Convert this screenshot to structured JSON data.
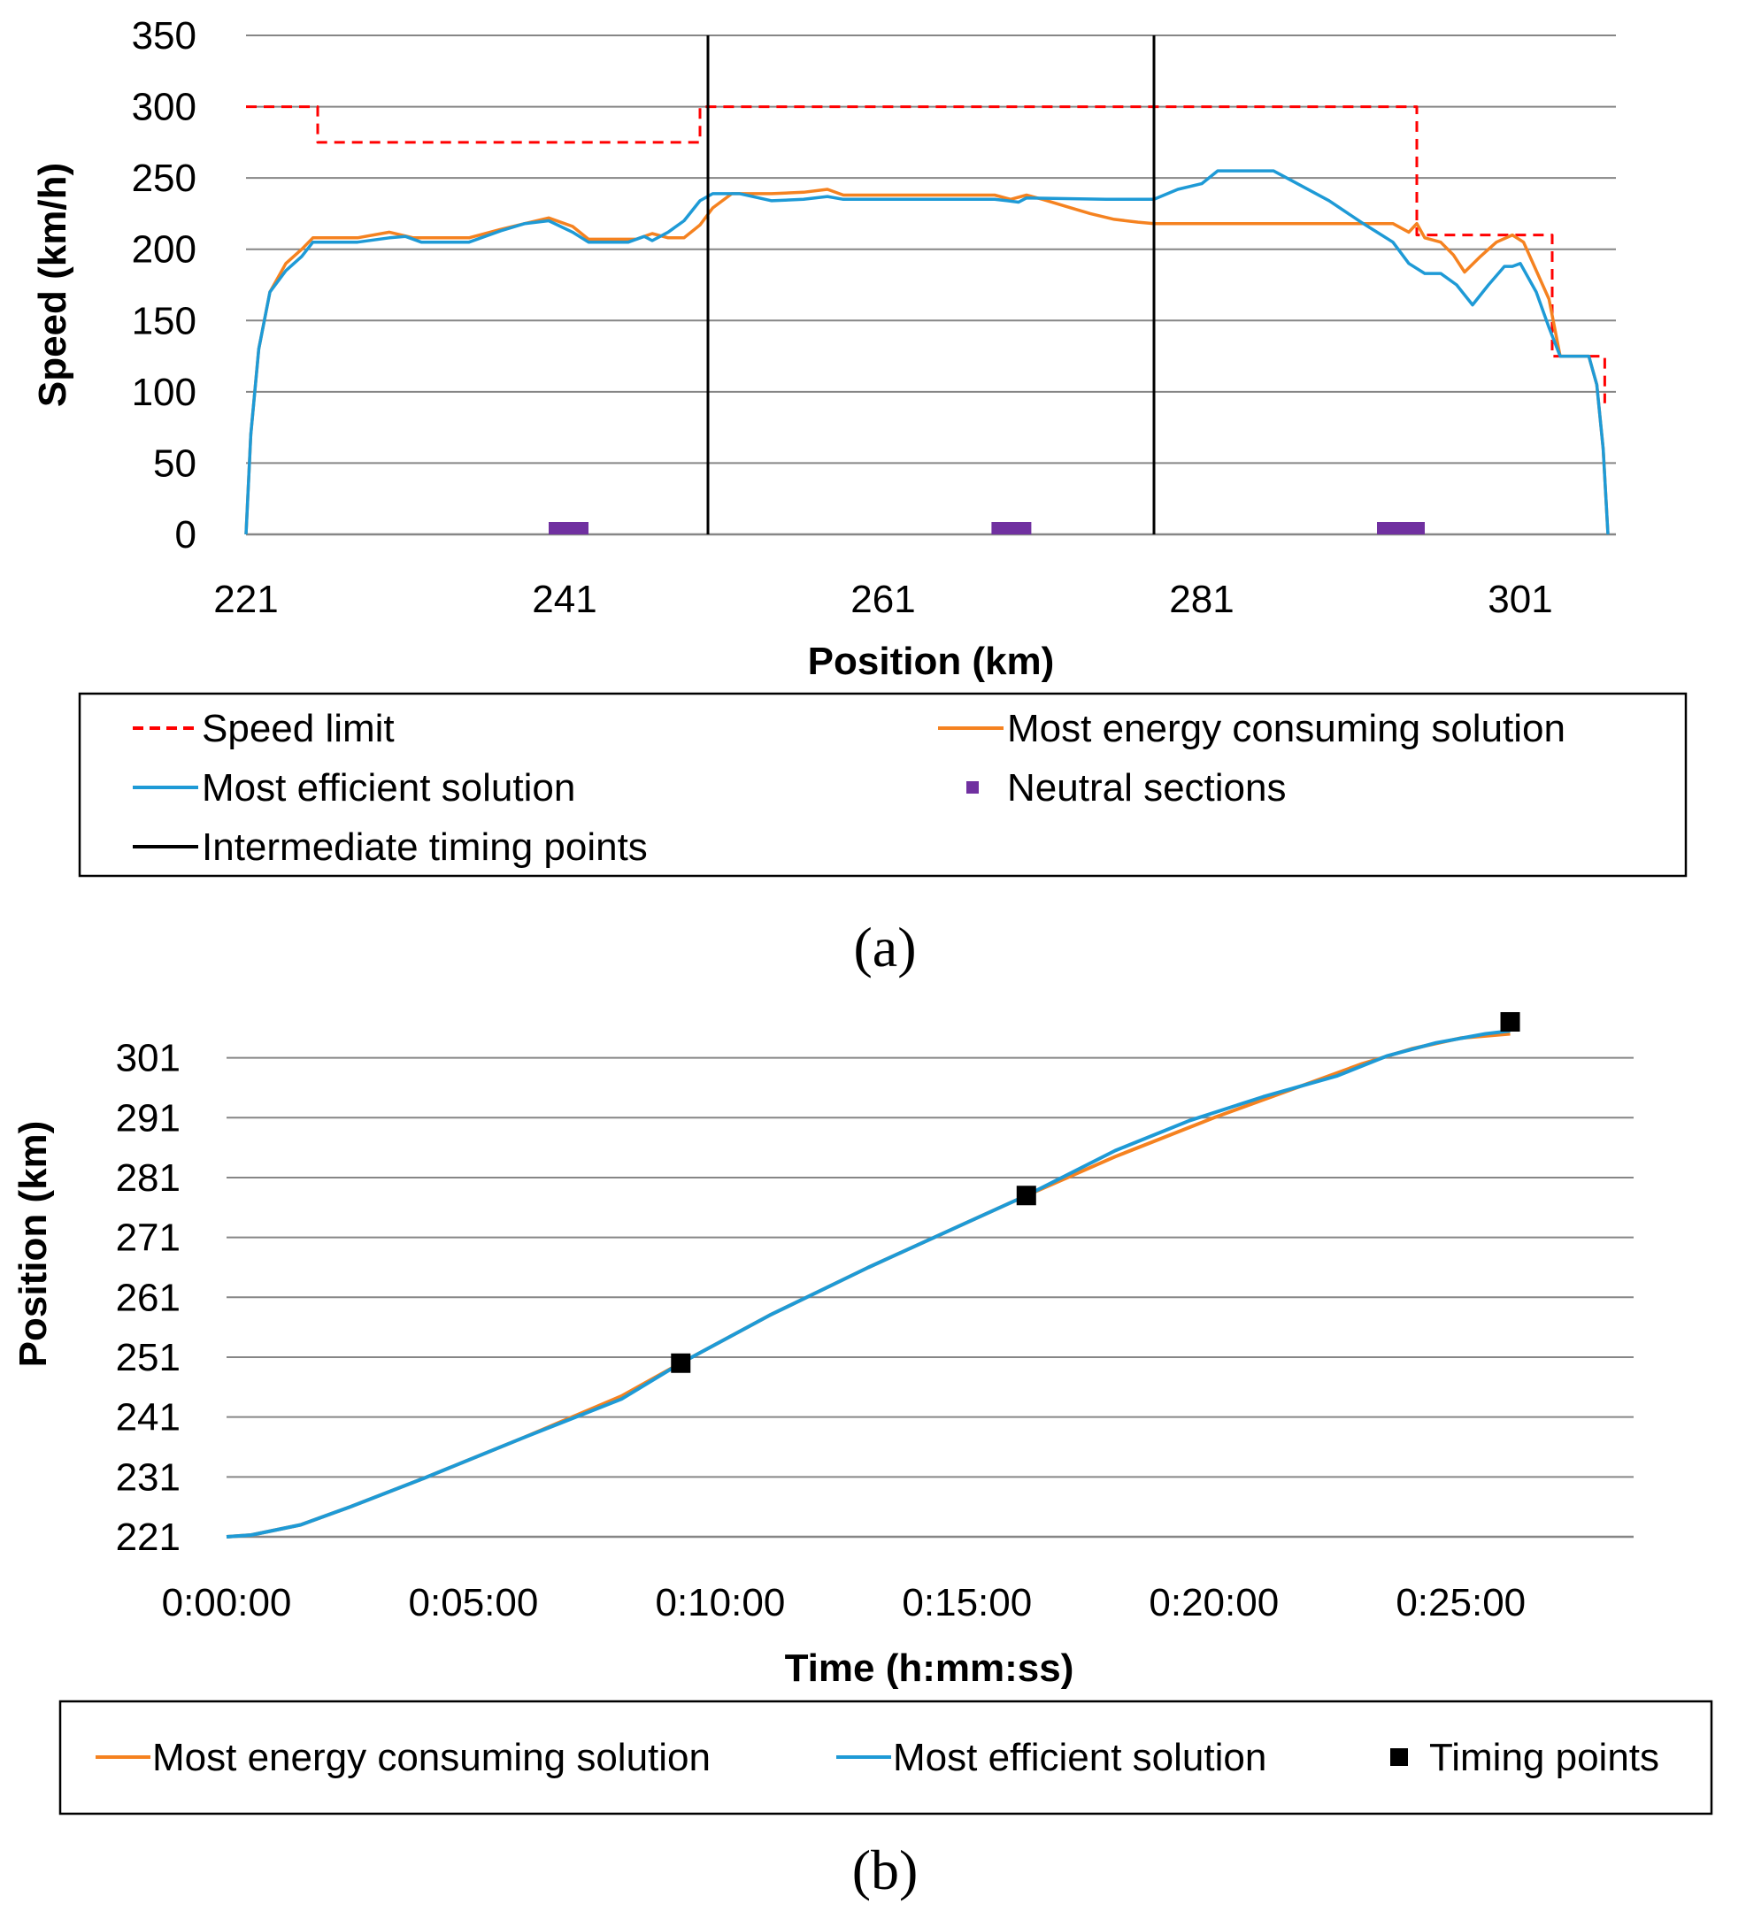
{
  "colors": {
    "speed_limit": "#ff0000",
    "energy": "#f58220",
    "efficient": "#1e9ad6",
    "neutral": "#7030a0",
    "timing": "#000000",
    "grid": "#868686"
  },
  "chart_data": [
    {
      "panel": "(a)",
      "type": "line",
      "xlabel": "Position (km)",
      "ylabel": "Speed (km/h)",
      "xlim": [
        221,
        307
      ],
      "ylim": [
        0,
        350
      ],
      "x_ticks": [
        221,
        241,
        261,
        281,
        301
      ],
      "y_ticks": [
        0,
        50,
        100,
        150,
        200,
        250,
        300,
        350
      ],
      "grid": true,
      "legend": {
        "position": "bottom",
        "items": [
          {
            "key": "speed_limit",
            "label": "Speed limit",
            "style": "dashed",
            "color": "#ff0000"
          },
          {
            "key": "energy",
            "label": "Most energy consuming solution",
            "style": "line",
            "color": "#f58220"
          },
          {
            "key": "efficient",
            "label": "Most efficient solution",
            "style": "line",
            "color": "#1e9ad6"
          },
          {
            "key": "neutral",
            "label": "Neutral sections",
            "style": "square",
            "color": "#7030a0"
          },
          {
            "key": "timing",
            "label": "Intermediate timing points",
            "style": "line",
            "color": "#000000"
          }
        ]
      },
      "series": [
        {
          "name": "Speed limit",
          "key": "speed_limit",
          "x": [
            221,
            225.5,
            225.5,
            249.5,
            249.5,
            294.5,
            294.5,
            303,
            303,
            306.3,
            306.3
          ],
          "y": [
            300,
            300,
            275,
            275,
            300,
            300,
            210,
            210,
            125,
            125,
            92
          ]
        },
        {
          "name": "Most energy consuming solution",
          "key": "energy",
          "x": [
            221,
            221.3,
            221.8,
            222.5,
            223.5,
            224.5,
            225.2,
            226,
            228,
            230,
            231.5,
            232.5,
            235,
            237,
            238.5,
            240,
            241.5,
            242.5,
            243.5,
            245.5,
            246.5,
            247.5,
            248.5,
            249.5,
            250.3,
            251.5,
            254,
            256,
            257.5,
            258.5,
            265,
            268,
            269,
            270,
            271,
            272.5,
            274,
            275.5,
            277,
            278,
            283,
            288,
            293,
            294,
            294.5,
            295,
            296,
            296.8,
            297.5,
            298.5,
            299.5,
            300.5,
            301.2,
            302,
            302.8,
            303.5,
            304.5,
            305.3,
            305.8,
            306.2,
            306.5
          ],
          "y": [
            0,
            70,
            130,
            170,
            190,
            200,
            208,
            208,
            208,
            212,
            208,
            208,
            208,
            214,
            218,
            222,
            216,
            207,
            207,
            207,
            211,
            208,
            208,
            217,
            229,
            239,
            239,
            240,
            242,
            238,
            238,
            238,
            235,
            238,
            235,
            230,
            225,
            221,
            219,
            218,
            218,
            218,
            218,
            212,
            218,
            208,
            205,
            196,
            184,
            195,
            205,
            210,
            205,
            185,
            165,
            125,
            125,
            125,
            105,
            60,
            0
          ]
        },
        {
          "name": "Most efficient solution",
          "key": "efficient",
          "x": [
            221,
            221.3,
            221.8,
            222.5,
            223.5,
            224.5,
            225.2,
            226,
            228,
            230,
            231,
            232,
            235,
            237,
            238.5,
            240,
            241.5,
            242.5,
            243.5,
            245,
            246,
            246.5,
            247.5,
            248.5,
            249.5,
            250.3,
            252,
            254,
            256,
            257.5,
            258.5,
            263,
            268,
            268.8,
            269.5,
            270,
            275,
            278,
            279.5,
            281,
            282,
            284,
            285.5,
            287,
            289,
            291,
            292,
            293,
            294,
            295,
            296,
            297,
            298,
            299,
            300,
            300.5,
            301,
            302,
            302.8,
            303.5,
            304.5,
            305.3,
            305.8,
            306.2,
            306.5
          ],
          "y": [
            0,
            70,
            130,
            170,
            185,
            195,
            205,
            205,
            205,
            208,
            209,
            205,
            205,
            213,
            218,
            220,
            212,
            205,
            205,
            205,
            209,
            206,
            212,
            220,
            234,
            239,
            239,
            234,
            235,
            237,
            235,
            235,
            235,
            234,
            233,
            236,
            235,
            235,
            242,
            246,
            255,
            255,
            255,
            246,
            234,
            219,
            212,
            205,
            190,
            183,
            183,
            175,
            161,
            175,
            188,
            188,
            190,
            170,
            145,
            125,
            125,
            125,
            105,
            60,
            0
          ]
        }
      ],
      "neutral_sections": [
        {
          "from": 240,
          "to": 242.5
        },
        {
          "from": 267.8,
          "to": 270.3
        },
        {
          "from": 292,
          "to": 295
        }
      ],
      "timing_points": [
        250,
        278
      ]
    },
    {
      "panel": "(b)",
      "type": "line",
      "xlabel": "Time (h:mm:ss)",
      "ylabel": "Position (km)",
      "xlim_minutes": [
        0,
        28.5
      ],
      "ylim": [
        221,
        307
      ],
      "x_ticks_minutes": [
        0,
        5,
        10,
        15,
        20,
        25
      ],
      "x_tick_labels": [
        "0:00:00",
        "0:05:00",
        "0:10:00",
        "0:15:00",
        "0:20:00",
        "0:25:00"
      ],
      "y_ticks": [
        221,
        231,
        241,
        251,
        261,
        271,
        281,
        291,
        301
      ],
      "grid": true,
      "legend": {
        "position": "bottom",
        "items": [
          {
            "key": "energy",
            "label": "Most energy consuming solution",
            "style": "line",
            "color": "#f58220"
          },
          {
            "key": "efficient",
            "label": "Most efficient solution",
            "style": "line",
            "color": "#1e9ad6"
          },
          {
            "key": "timing",
            "label": "Timing points",
            "style": "square",
            "color": "#000000"
          }
        ]
      },
      "series": [
        {
          "name": "Most energy consuming solution",
          "key": "energy",
          "x_minutes": [
            0,
            0.5,
            1.5,
            2.5,
            4,
            6,
            8,
            9.2,
            11,
            13,
            15,
            16.2,
            18,
            20,
            22,
            23,
            24,
            25,
            26
          ],
          "y": [
            221,
            221.3,
            223,
            226,
            230.8,
            237.5,
            244.5,
            250,
            258,
            266,
            273.5,
            278,
            284.5,
            291,
            297,
            300,
            302.5,
            304.3,
            305
          ]
        },
        {
          "name": "Most efficient solution",
          "key": "efficient",
          "x_minutes": [
            0,
            0.5,
            1.5,
            2.5,
            4,
            6,
            8,
            9.2,
            11,
            13,
            15,
            16.2,
            18,
            19.5,
            21,
            22.5,
            23.5,
            24.5,
            25.5,
            26
          ],
          "y": [
            221,
            221.3,
            223,
            226,
            230.8,
            237.5,
            244,
            250,
            258,
            266,
            273.5,
            278,
            285.5,
            290.5,
            294.5,
            298,
            301.3,
            303.5,
            305,
            305.5
          ]
        }
      ],
      "timing_points": [
        {
          "x_minutes": 9.2,
          "y": 250
        },
        {
          "x_minutes": 16.2,
          "y": 278
        },
        {
          "x_minutes": 26,
          "y": 307
        }
      ]
    }
  ]
}
